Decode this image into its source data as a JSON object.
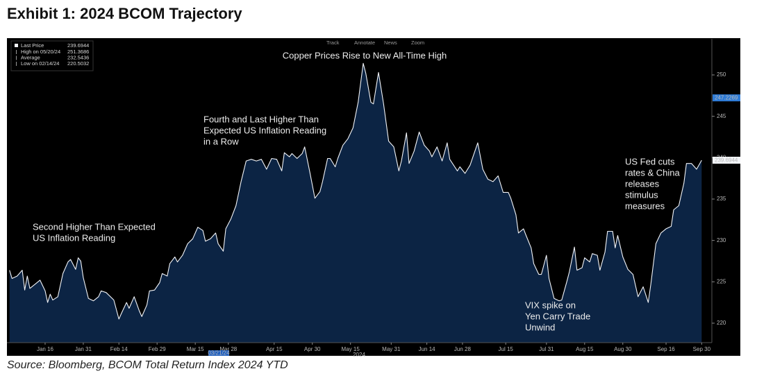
{
  "title": "Exhibit 1: 2024 BCOM Trajectory",
  "source": "Source: Bloomberg, BCOM Total Return Index 2024 YTD",
  "toolbar": [
    "Track",
    "Annotate",
    "News",
    "Zoom"
  ],
  "chart_data": {
    "type": "area",
    "x": [
      "2024-01-02",
      "2024-01-03",
      "2024-01-05",
      "2024-01-07",
      "2024-01-08",
      "2024-01-09",
      "2024-01-10",
      "2024-01-12",
      "2024-01-14",
      "2024-01-16",
      "2024-01-17",
      "2024-01-18",
      "2024-01-19",
      "2024-01-21",
      "2024-01-23",
      "2024-01-25",
      "2024-01-26",
      "2024-01-28",
      "2024-01-29",
      "2024-01-30",
      "2024-01-31",
      "2024-02-02",
      "2024-02-04",
      "2024-02-06",
      "2024-02-07",
      "2024-02-09",
      "2024-02-12",
      "2024-02-14",
      "2024-02-15",
      "2024-02-17",
      "2024-02-18",
      "2024-02-20",
      "2024-02-22",
      "2024-02-23",
      "2024-02-25",
      "2024-02-26",
      "2024-02-28",
      "2024-03-01",
      "2024-03-02",
      "2024-03-04",
      "2024-03-05",
      "2024-03-07",
      "2024-03-08",
      "2024-03-10",
      "2024-03-12",
      "2024-03-14",
      "2024-03-16",
      "2024-03-18",
      "2024-03-19",
      "2024-03-21",
      "2024-03-23",
      "2024-03-24",
      "2024-03-26",
      "2024-03-27",
      "2024-03-29",
      "2024-03-31",
      "2024-04-02",
      "2024-04-04",
      "2024-04-06",
      "2024-04-08",
      "2024-04-10",
      "2024-04-12",
      "2024-04-14",
      "2024-04-16",
      "2024-04-18",
      "2024-04-19",
      "2024-04-21",
      "2024-04-22",
      "2024-04-24",
      "2024-04-26",
      "2024-04-27",
      "2024-04-29",
      "2024-05-01",
      "2024-05-03",
      "2024-05-04",
      "2024-05-06",
      "2024-05-07",
      "2024-05-09",
      "2024-05-10",
      "2024-05-12",
      "2024-05-14",
      "2024-05-16",
      "2024-05-18",
      "2024-05-20",
      "2024-05-21",
      "2024-05-23",
      "2024-05-24",
      "2024-05-26",
      "2024-05-28",
      "2024-05-30",
      "2024-06-01",
      "2024-06-03",
      "2024-06-04",
      "2024-06-06",
      "2024-06-07",
      "2024-06-09",
      "2024-06-11",
      "2024-06-13",
      "2024-06-15",
      "2024-06-16",
      "2024-06-18",
      "2024-06-20",
      "2024-06-22",
      "2024-06-23",
      "2024-06-26",
      "2024-06-27",
      "2024-06-29",
      "2024-07-01",
      "2024-07-04",
      "2024-07-06",
      "2024-07-08",
      "2024-07-10",
      "2024-07-12",
      "2024-07-14",
      "2024-07-16",
      "2024-07-17",
      "2024-07-19",
      "2024-07-20",
      "2024-07-22",
      "2024-07-23",
      "2024-07-25",
      "2024-07-26",
      "2024-07-28",
      "2024-07-29",
      "2024-07-31",
      "2024-08-01",
      "2024-08-03",
      "2024-08-05",
      "2024-08-06",
      "2024-08-08",
      "2024-08-09",
      "2024-08-11",
      "2024-08-12",
      "2024-08-14",
      "2024-08-15",
      "2024-08-17",
      "2024-08-18",
      "2024-08-20",
      "2024-08-21",
      "2024-08-23",
      "2024-08-24",
      "2024-08-26",
      "2024-08-27",
      "2024-08-28",
      "2024-08-30",
      "2024-09-01",
      "2024-09-03",
      "2024-09-05",
      "2024-09-07",
      "2024-09-09",
      "2024-09-10",
      "2024-09-12",
      "2024-09-14",
      "2024-09-16",
      "2024-09-18",
      "2024-09-19",
      "2024-09-21",
      "2024-09-23",
      "2024-09-24",
      "2024-09-26",
      "2024-09-28",
      "2024-09-30"
    ],
    "series": [
      {
        "name": "Last Price",
        "color": "#f2f4f8",
        "fill": "#0c2444",
        "values": [
          226.4,
          225.4,
          225.7,
          226.4,
          224.0,
          225.7,
          224.2,
          224.7,
          225.2,
          223.9,
          222.5,
          223.5,
          222.8,
          223.2,
          226.0,
          227.4,
          227.7,
          226.5,
          227.9,
          227.5,
          225.5,
          223.0,
          222.7,
          223.2,
          223.9,
          223.7,
          222.8,
          220.5,
          221.2,
          222.5,
          221.8,
          223.2,
          221.5,
          220.8,
          222.2,
          223.9,
          224.0,
          224.9,
          226.0,
          225.7,
          227.2,
          228.0,
          227.4,
          228.2,
          229.6,
          230.2,
          231.6,
          231.2,
          229.9,
          230.2,
          230.9,
          229.6,
          228.7,
          231.4,
          232.6,
          234.2,
          237.1,
          239.6,
          239.8,
          239.6,
          239.8,
          238.6,
          239.9,
          239.8,
          238.4,
          240.6,
          240.1,
          240.5,
          239.9,
          240.5,
          241.3,
          238.3,
          235.1,
          235.9,
          237.1,
          239.9,
          239.9,
          238.9,
          239.9,
          241.5,
          242.3,
          243.6,
          246.7,
          251.4,
          250.2,
          246.7,
          246.5,
          250.3,
          246.5,
          242.0,
          241.3,
          238.4,
          239.6,
          243.0,
          239.3,
          240.8,
          243.1,
          241.5,
          240.8,
          240.1,
          241.3,
          239.6,
          241.8,
          239.8,
          238.4,
          238.9,
          238.1,
          239.1,
          241.8,
          238.6,
          237.4,
          237.1,
          237.8,
          235.8,
          235.8,
          235.1,
          233.1,
          230.9,
          231.4,
          230.6,
          229.1,
          227.2,
          225.9,
          225.9,
          228.2,
          225.4,
          223.0,
          222.7,
          222.8,
          225.0,
          226.2,
          229.2,
          226.4,
          226.7,
          227.9,
          227.4,
          228.4,
          228.2,
          226.4,
          228.6,
          231.1,
          231.1,
          229.1,
          230.6,
          228.0,
          226.5,
          225.9,
          223.2,
          224.4,
          222.5,
          224.7,
          229.6,
          230.9,
          231.4,
          231.7,
          233.7,
          234.2,
          236.9,
          239.3,
          239.3,
          238.6,
          239.6944
        ]
      }
    ],
    "last_price": 239.6944,
    "stats": [
      {
        "label": "High on 05/20/24",
        "value": 251.3686
      },
      {
        "label": "Average",
        "value": 232.5436
      },
      {
        "label": "Low on 02/14/24",
        "value": 220.5032
      }
    ],
    "value_tags": [
      {
        "value": 247.2269,
        "color": "#2e7bd6"
      }
    ],
    "xlim": [
      "2024-01-01",
      "2024-10-04"
    ],
    "xticks": [
      {
        "value": "2024-01-16",
        "label": "Jan 16"
      },
      {
        "value": "2024-01-31",
        "label": "Jan 31"
      },
      {
        "value": "2024-02-14",
        "label": "Feb 14"
      },
      {
        "value": "2024-02-29",
        "label": "Feb 29"
      },
      {
        "value": "2024-03-15",
        "label": "Mar 15"
      },
      {
        "value": "2024-03-28",
        "label": "Mar 28"
      },
      {
        "value": "2024-04-15",
        "label": "Apr 15"
      },
      {
        "value": "2024-04-30",
        "label": "Apr 30"
      },
      {
        "value": "2024-05-15",
        "label": "May 15"
      },
      {
        "value": "2024-05-31",
        "label": "May 31"
      },
      {
        "value": "2024-06-14",
        "label": "Jun 14"
      },
      {
        "value": "2024-06-28",
        "label": "Jun 28"
      },
      {
        "value": "2024-07-15",
        "label": "Jul 15"
      },
      {
        "value": "2024-07-31",
        "label": "Jul 31"
      },
      {
        "value": "2024-08-15",
        "label": "Aug 15"
      },
      {
        "value": "2024-08-30",
        "label": "Aug 30"
      },
      {
        "value": "2024-09-16",
        "label": "Sep 16"
      },
      {
        "value": "2024-09-30",
        "label": "Sep 30"
      }
    ],
    "year_label": "2024",
    "crosshair_date": "03/21/24",
    "ylim": [
      217.65,
      254.36
    ],
    "yticks": [
      220,
      225,
      230,
      235,
      240,
      245,
      250
    ],
    "grid": false,
    "annotations": [
      [
        "Copper Prices Rise to New All-Time High"
      ],
      [
        "Fourth and Last Higher Than",
        "Expected US Inflation Reading",
        "in a Row"
      ],
      [
        "Second Higher Than Expected",
        "US Inflation Reading"
      ],
      [
        "VIX spike on",
        "Yen Carry Trade",
        "Unwind"
      ],
      [
        "US Fed cuts",
        "rates & China",
        "releases",
        "stimulus",
        "measures"
      ]
    ]
  }
}
